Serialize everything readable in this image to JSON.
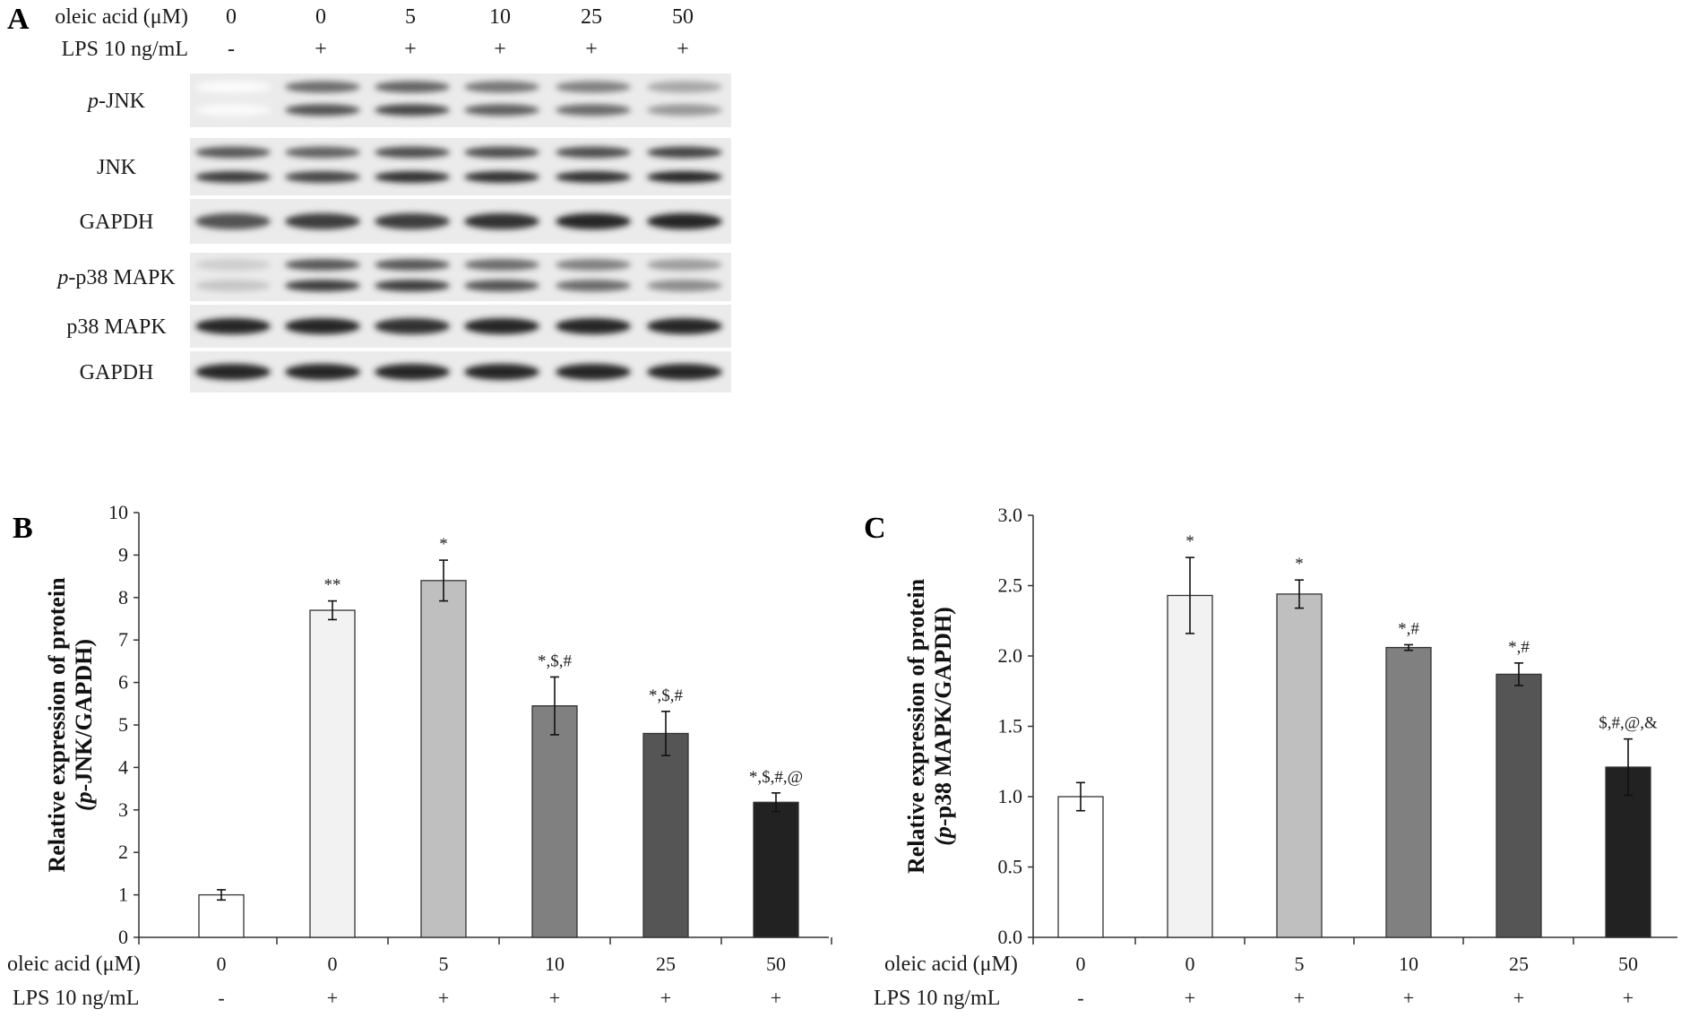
{
  "panel_a": {
    "letter": "A",
    "header_rows": [
      {
        "label": "oleic acid (μM)",
        "values": [
          "0",
          "0",
          "5",
          "10",
          "25",
          "50"
        ]
      },
      {
        "label": "LPS 10 ng/mL",
        "values": [
          "-",
          "+",
          "+",
          "+",
          "+",
          "+"
        ]
      }
    ],
    "blots": [
      {
        "prefix": "p",
        "label": "-JNK",
        "bands": 2,
        "intensity": [
          0.02,
          0.75,
          0.8,
          0.7,
          0.65,
          0.45
        ]
      },
      {
        "prefix": "",
        "label": "JNK",
        "bands": 2,
        "intensity": [
          0.85,
          0.8,
          0.9,
          0.9,
          0.9,
          0.95
        ]
      },
      {
        "prefix": "",
        "label": "GAPDH",
        "bands": 1,
        "intensity": [
          0.75,
          0.85,
          0.85,
          0.9,
          0.95,
          0.95
        ]
      },
      {
        "prefix": "p",
        "label": "-p38 MAPK",
        "bands": 2,
        "intensity": [
          0.25,
          0.85,
          0.85,
          0.75,
          0.65,
          0.5
        ]
      },
      {
        "prefix": "",
        "label": "p38 MAPK",
        "bands": 1,
        "intensity": [
          0.95,
          0.95,
          0.9,
          0.95,
          0.95,
          0.95
        ]
      },
      {
        "prefix": "",
        "label": "GAPDH",
        "bands": 1,
        "intensity": [
          0.95,
          0.95,
          0.95,
          0.95,
          0.95,
          0.95
        ]
      }
    ]
  },
  "chart_data": [
    {
      "panel": "B",
      "type": "bar",
      "ylabel_line1": "Relative expression of protein",
      "ylabel_line2_prefix": "(p",
      "ylabel_line2_rest": "-JNK/GAPDH)",
      "ylim": [
        0,
        10
      ],
      "yticks": [
        "0",
        "1",
        "2",
        "3",
        "4",
        "5",
        "6",
        "7",
        "8",
        "9",
        "10"
      ],
      "categories": [
        "0",
        "0",
        "5",
        "10",
        "25",
        "50"
      ],
      "values": [
        1.0,
        7.7,
        8.4,
        5.45,
        4.8,
        3.18
      ],
      "errors": [
        0.12,
        0.22,
        0.48,
        0.68,
        0.52,
        0.22
      ],
      "significance": [
        "",
        "**",
        "*",
        "*,$,#",
        "*,$,#",
        "*,$,#,@"
      ],
      "bar_colors": [
        "#ffffff",
        "#f2f2f2",
        "#bfbfbf",
        "#808080",
        "#555555",
        "#222222"
      ],
      "row1_label": "oleic acid (μM)",
      "row2_label": "LPS 10 ng/mL",
      "lps": [
        "-",
        "+",
        "+",
        "+",
        "+",
        "+"
      ]
    },
    {
      "panel": "C",
      "type": "bar",
      "ylabel_line1": "Relative expression of protein",
      "ylabel_line2_prefix": "(p",
      "ylabel_line2_rest": "-p38 MAPK/GAPDH)",
      "ylim": [
        0,
        3
      ],
      "yticks": [
        "0.0",
        "0.5",
        "1.0",
        "1.5",
        "2.0",
        "2.5",
        "3.0"
      ],
      "categories": [
        "0",
        "0",
        "5",
        "10",
        "25",
        "50"
      ],
      "values": [
        1.0,
        2.43,
        2.44,
        2.06,
        1.87,
        1.21
      ],
      "errors": [
        0.1,
        0.27,
        0.1,
        0.02,
        0.08,
        0.2
      ],
      "significance": [
        "",
        "*",
        "*",
        "*,#",
        "*,#",
        "$,#,@,&"
      ],
      "bar_colors": [
        "#ffffff",
        "#f2f2f2",
        "#bfbfbf",
        "#808080",
        "#555555",
        "#222222"
      ],
      "row1_label": "oleic acid (μM)",
      "row2_label": "LPS 10 ng/mL",
      "lps": [
        "-",
        "+",
        "+",
        "+",
        "+",
        "+"
      ]
    }
  ]
}
